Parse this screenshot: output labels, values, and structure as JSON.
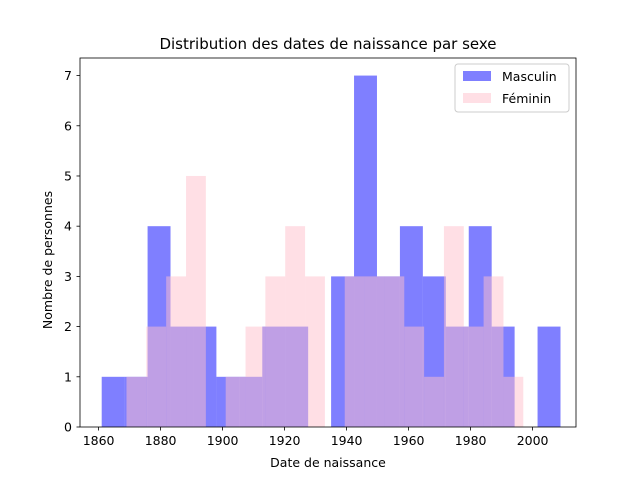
{
  "chart_data": {
    "type": "bar",
    "subtype": "overlaid-histogram",
    "title": "Distribution des dates de naissance par sexe",
    "xlabel": "Date de naissance",
    "ylabel": "Nombre de personnes",
    "xlim": [
      1854,
      2014
    ],
    "ylim": [
      0,
      7.35
    ],
    "xticks": [
      1860,
      1880,
      1900,
      1920,
      1940,
      1960,
      1980,
      2000
    ],
    "yticks": [
      0,
      1,
      2,
      3,
      4,
      5,
      6,
      7
    ],
    "legend_position": "top-right",
    "grid": false,
    "series": [
      {
        "name": "Masculin",
        "color": "#0000ff",
        "opacity": 0.5,
        "bins": [
          [
            1861,
            1868.4,
            1
          ],
          [
            1868.4,
            1875.8,
            1
          ],
          [
            1875.8,
            1883.2,
            4
          ],
          [
            1883.2,
            1890.6,
            2
          ],
          [
            1890.6,
            1898.0,
            2
          ],
          [
            1898.0,
            1905.4,
            1
          ],
          [
            1905.4,
            1912.8,
            1
          ],
          [
            1912.8,
            1920.2,
            2
          ],
          [
            1920.2,
            1927.6,
            2
          ],
          [
            1927.6,
            1935.0,
            0
          ],
          [
            1935.0,
            1942.4,
            3
          ],
          [
            1942.4,
            1949.8,
            7
          ],
          [
            1949.8,
            1957.2,
            3
          ],
          [
            1957.2,
            1964.6,
            4
          ],
          [
            1964.6,
            1972.0,
            3
          ],
          [
            1972.0,
            1979.4,
            2
          ],
          [
            1979.4,
            1986.8,
            4
          ],
          [
            1986.8,
            1994.2,
            2
          ],
          [
            1994.2,
            2001.6,
            0
          ],
          [
            2001.6,
            2009.0,
            2
          ]
        ]
      },
      {
        "name": "Féminin",
        "color": "#ffc0cb",
        "opacity": 0.5,
        "bins": [
          [
            1869,
            1875.4,
            1
          ],
          [
            1875.4,
            1881.8,
            2
          ],
          [
            1881.8,
            1888.2,
            3
          ],
          [
            1888.2,
            1894.6,
            5
          ],
          [
            1894.6,
            1901.0,
            0
          ],
          [
            1901.0,
            1907.4,
            1
          ],
          [
            1907.4,
            1913.8,
            2
          ],
          [
            1913.8,
            1920.2,
            3
          ],
          [
            1920.2,
            1926.6,
            4
          ],
          [
            1926.6,
            1933.0,
            3
          ],
          [
            1933.0,
            1939.4,
            0
          ],
          [
            1939.4,
            1945.8,
            3
          ],
          [
            1945.8,
            1952.2,
            3
          ],
          [
            1952.2,
            1958.6,
            3
          ],
          [
            1958.6,
            1965.0,
            2
          ],
          [
            1965.0,
            1971.4,
            1
          ],
          [
            1971.4,
            1977.8,
            4
          ],
          [
            1977.8,
            1984.2,
            2
          ],
          [
            1984.2,
            1990.6,
            3
          ],
          [
            1990.6,
            1997.0,
            1
          ]
        ]
      }
    ]
  }
}
